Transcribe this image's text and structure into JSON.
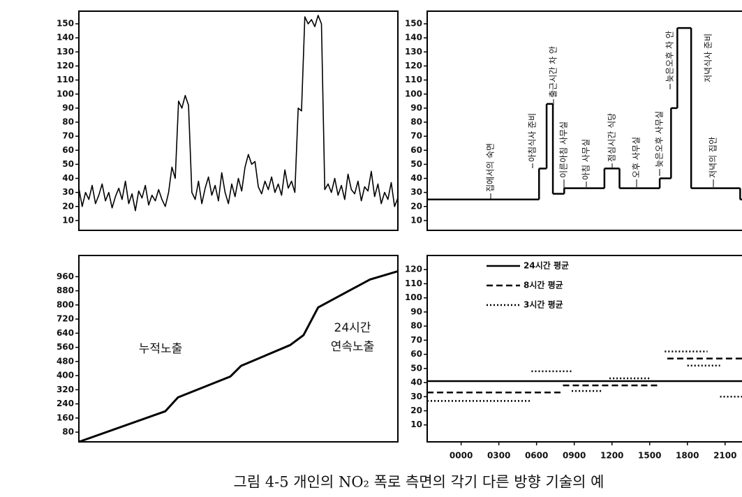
{
  "caption": "그림 4-5 개인의 NO₂ 폭로 측면의 각기 다른 방향 기술의 예",
  "chart_data": [
    {
      "type": "line",
      "color": "#000000",
      "x": [
        0,
        0.25,
        0.5,
        0.75,
        1,
        1.25,
        1.5,
        1.75,
        2,
        2.25,
        2.5,
        2.75,
        3,
        3.25,
        3.5,
        3.75,
        4,
        4.25,
        4.5,
        4.75,
        5,
        5.25,
        5.5,
        5.75,
        6,
        6.25,
        6.5,
        6.75,
        7,
        7.25,
        7.5,
        7.75,
        8,
        8.25,
        8.5,
        8.75,
        9,
        9.25,
        9.5,
        9.75,
        10,
        10.25,
        10.5,
        10.75,
        11,
        11.25,
        11.5,
        11.75,
        12,
        12.25,
        12.5,
        12.75,
        13,
        13.25,
        13.5,
        13.75,
        14,
        14.25,
        14.5,
        14.75,
        15,
        15.25,
        15.5,
        15.75,
        16,
        16.25,
        16.5,
        16.75,
        17,
        17.25,
        17.5,
        17.75,
        18,
        18.25,
        18.5,
        18.75,
        19,
        19.25,
        19.5,
        19.75,
        20,
        20.25,
        20.5,
        20.75,
        21,
        21.25,
        21.5,
        21.75,
        22,
        22.25,
        22.5,
        22.75,
        23,
        23.25,
        23.5,
        23.75,
        24
      ],
      "values": [
        33,
        20,
        30,
        25,
        35,
        22,
        28,
        36,
        24,
        30,
        19,
        27,
        33,
        25,
        38,
        22,
        29,
        17,
        31,
        26,
        35,
        21,
        28,
        24,
        32,
        25,
        20,
        30,
        48,
        40,
        95,
        90,
        99,
        92,
        30,
        25,
        38,
        22,
        33,
        41,
        28,
        35,
        24,
        44,
        30,
        22,
        36,
        27,
        40,
        31,
        48,
        57,
        50,
        52,
        34,
        29,
        38,
        32,
        41,
        30,
        36,
        28,
        46,
        33,
        38,
        30,
        90,
        88,
        155,
        150,
        153,
        148,
        156,
        150,
        32,
        36,
        30,
        40,
        28,
        35,
        25,
        43,
        32,
        29,
        38,
        24,
        34,
        31,
        45,
        27,
        36,
        22,
        30,
        25,
        37,
        20,
        26
      ],
      "xlim": [
        0,
        24
      ],
      "ylim": [
        3,
        159
      ],
      "yticks": [
        10,
        20,
        30,
        40,
        50,
        60,
        70,
        80,
        90,
        100,
        110,
        120,
        130,
        140,
        150
      ]
    },
    {
      "type": "step",
      "color": "#000000",
      "x": [
        -2.7,
        6.2,
        6.8,
        7.3,
        8.2,
        11.4,
        12.6,
        15.8,
        16.7,
        17.2,
        18.3,
        22.2
      ],
      "values": [
        25,
        47,
        93,
        29,
        33,
        47,
        33,
        40,
        90,
        147,
        33,
        25
      ],
      "xlim": [
        -2.7,
        24.4
      ],
      "ylim": [
        3,
        159
      ],
      "yticks": [
        10,
        20,
        30,
        40,
        50,
        60,
        70,
        80,
        90,
        100,
        110,
        120,
        130,
        140,
        150
      ],
      "annotations": [
        "집에서의 숙면",
        "아침식사 준비",
        "출근시간 차 안",
        "이른아침 사무실",
        "아침 사무실",
        "점심시간 식당",
        "오후 사무실",
        "늦은오후 사무실",
        "늦은오후 차 안",
        "저녁식사 준비",
        "저녁의 집안"
      ]
    },
    {
      "type": "line",
      "color": "#000000",
      "x": [
        0,
        6.5,
        7.46,
        11.4,
        12.2,
        15.9,
        16.9,
        18,
        21.9,
        24
      ],
      "values": [
        25,
        198,
        277,
        395,
        455,
        573,
        629,
        786,
        944,
        991
      ],
      "xlim": [
        0,
        24
      ],
      "ylim": [
        25,
        1080
      ],
      "yticks": [
        80,
        160,
        240,
        320,
        400,
        480,
        560,
        640,
        720,
        800,
        880,
        960
      ],
      "annotations": [
        "누적노출",
        "24시간",
        "연속노출"
      ]
    },
    {
      "type": "segments",
      "xlim": [
        -2.7,
        24.4
      ],
      "ylim": [
        -2,
        130
      ],
      "yticks": [
        10,
        20,
        30,
        40,
        50,
        60,
        70,
        80,
        90,
        100,
        110,
        120
      ],
      "xticks": [
        {
          "value": 0,
          "label": "0000"
        },
        {
          "value": 3,
          "label": "0300"
        },
        {
          "value": 6,
          "label": "0600"
        },
        {
          "value": 9,
          "label": "0900"
        },
        {
          "value": 12,
          "label": "1200"
        },
        {
          "value": 15,
          "label": "1500"
        },
        {
          "value": 18,
          "label": "1800"
        },
        {
          "value": 21,
          "label": "2100"
        }
      ],
      "series": [
        {
          "name": "24시간 평균",
          "color": "#000000",
          "style": "solid",
          "x": [
            -2.7
          ],
          "x_end": [
            24.4
          ],
          "values": [
            41
          ]
        },
        {
          "name": "8시간 평균",
          "color": "#000000",
          "style": "dashed",
          "x": [
            -2.7,
            8.1,
            16.4
          ],
          "x_end": [
            8.1,
            15.7,
            24.4
          ],
          "values": [
            33,
            38,
            57
          ]
        },
        {
          "name": "3시간 평균",
          "color": "#000000",
          "style": "dotted",
          "x": [
            -2.7,
            5.6,
            8.8,
            11.8,
            16.2,
            18,
            20.6
          ],
          "x_end": [
            5.6,
            8.9,
            11.2,
            15,
            19.6,
            20.6,
            24.4
          ],
          "values": [
            27,
            48,
            34,
            43,
            62,
            52,
            30
          ]
        }
      ]
    }
  ]
}
